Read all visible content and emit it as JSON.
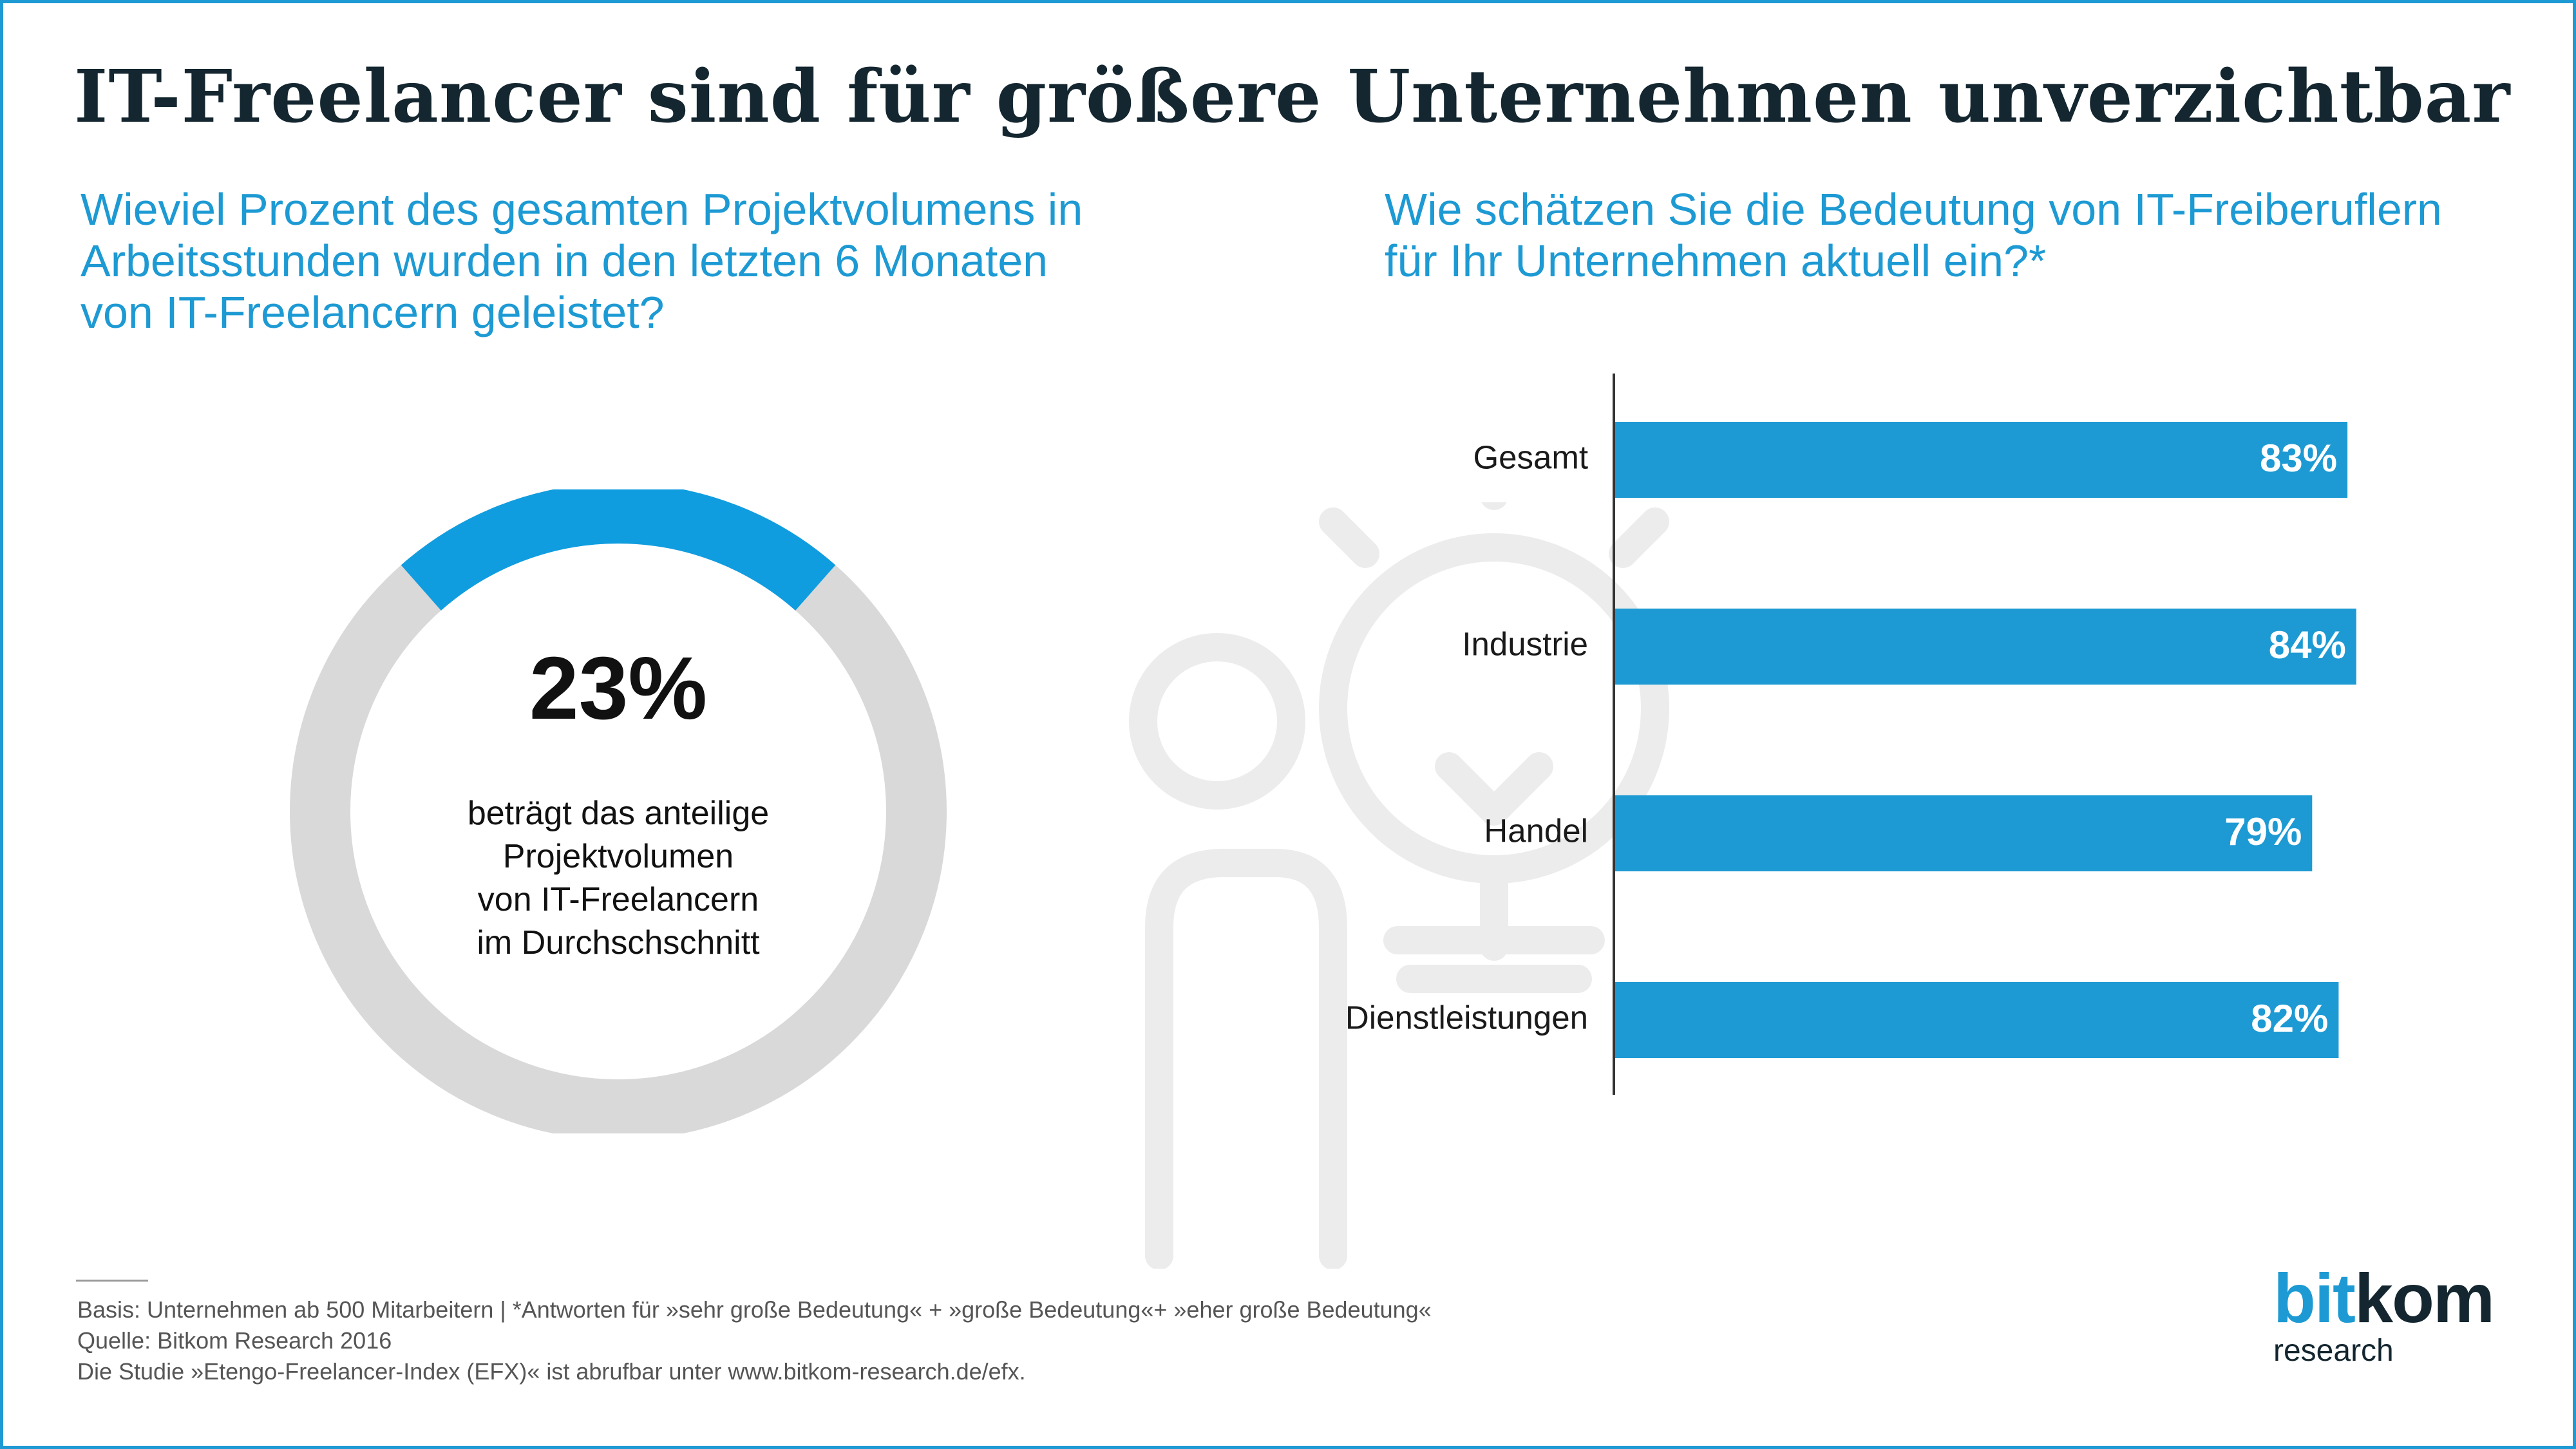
{
  "title": "IT-Freelancer sind für größere Unternehmen unverzichtbar",
  "left_question": {
    "lines": [
      "Wieviel Prozent des gesamten Projektvolumens in",
      "Arbeitsstunden wurden in den letzten 6 Monaten",
      "von IT-Freelancern geleistet?"
    ]
  },
  "right_question": {
    "lines": [
      "Wie schätzen Sie die Bedeutung von IT-Freiberuflern",
      "für Ihr Unternehmen aktuell ein?*"
    ]
  },
  "donut": {
    "value_label": "23%",
    "caption_lines": [
      "beträgt das anteilige",
      "Projektvolumen",
      "von IT-Freelancern",
      "im Durchschschnitt"
    ]
  },
  "chart_data": [
    {
      "type": "pie",
      "categories": [
        "IT-Freelancer"
      ],
      "values": [
        23
      ],
      "unit": "%",
      "colors": {
        "highlight": "#0f9de0",
        "remainder": "#d9d9d9"
      }
    },
    {
      "type": "bar",
      "orientation": "horizontal",
      "categories": [
        "Gesamt",
        "Industrie",
        "Handel",
        "Dienstleistungen"
      ],
      "values": [
        83,
        84,
        79,
        82
      ],
      "value_labels": [
        "83%",
        "84%",
        "79%",
        "82%"
      ],
      "xlim": [
        0,
        100
      ],
      "grid": false,
      "colors": {
        "bar": "#1d9ad3",
        "axis": "#333333",
        "value_label": "#ffffff"
      }
    }
  ],
  "footer": {
    "lines": [
      "Basis: Unternehmen ab 500 Mitarbeitern | *Antworten für »sehr große Bedeutung« + »große Bedeutung«+ »eher große Bedeutung«",
      "Quelle: Bitkom Research 2016",
      "Die Studie »Etengo-Freelancer-Index (EFX)« ist abrufbar unter www.bitkom-research.de/efx."
    ]
  },
  "logo": {
    "main_part1": "bit",
    "main_part2": "kom",
    "sub": "research"
  },
  "colors": {
    "accent": "#1d9ad3",
    "title": "#14262f",
    "decor": "#ececec"
  },
  "icons": [
    "person-lightbulb-icon"
  ]
}
